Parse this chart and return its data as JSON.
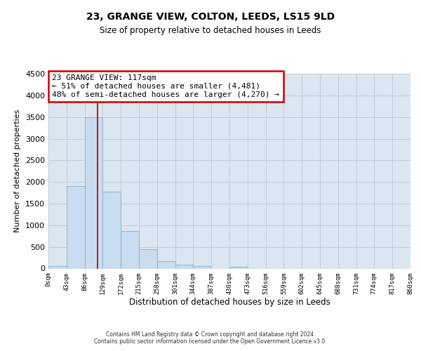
{
  "title": "23, GRANGE VIEW, COLTON, LEEDS, LS15 9LD",
  "subtitle": "Size of property relative to detached houses in Leeds",
  "xlabel": "Distribution of detached houses by size in Leeds",
  "ylabel": "Number of detached properties",
  "bin_edges": [
    0,
    43,
    86,
    129,
    172,
    215,
    258,
    301,
    344,
    387,
    430,
    473,
    516,
    559,
    602,
    645,
    688,
    731,
    774,
    817,
    860
  ],
  "bar_values": [
    50,
    1900,
    3500,
    1780,
    860,
    450,
    175,
    90,
    50,
    0,
    35,
    0,
    0,
    0,
    0,
    0,
    0,
    0,
    0,
    0
  ],
  "bar_color": "#c9dcf0",
  "bar_edge_color": "#8ab4d8",
  "property_line_x": 117,
  "property_line_color": "#cc0000",
  "annotation_title": "23 GRANGE VIEW: 117sqm",
  "annotation_line1": "← 51% of detached houses are smaller (4,481)",
  "annotation_line2": "48% of semi-detached houses are larger (4,270) →",
  "annotation_box_color": "#ffffff",
  "annotation_box_edge": "#cc0000",
  "ylim": [
    0,
    4500
  ],
  "yticks": [
    0,
    500,
    1000,
    1500,
    2000,
    2500,
    3000,
    3500,
    4000,
    4500
  ],
  "grid_color": "#c0ccd8",
  "background_color": "#dce6f1",
  "footer_line1": "Contains HM Land Registry data © Crown copyright and database right 2024.",
  "footer_line2": "Contains public sector information licensed under the Open Government Licence v3.0."
}
